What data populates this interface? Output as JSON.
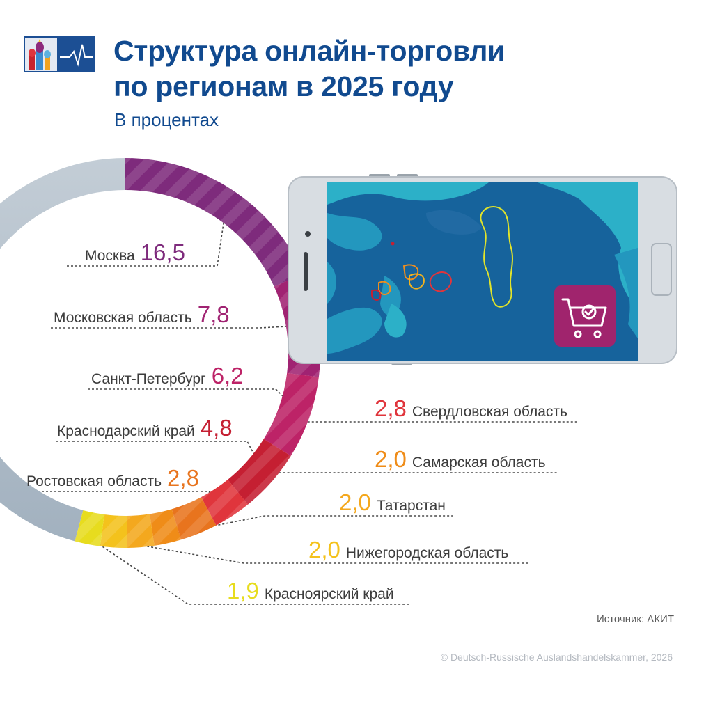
{
  "title_line1": "Структура онлайн-торговли",
  "title_line2": "по регионам в 2025 году",
  "subtitle": "В процентах",
  "source": "Источник: АКИТ",
  "copyright": "© Deutsch-Russische Auslandshandelskammer, 2026",
  "icons": {
    "logo": "chamber-logo-icon",
    "phone": "smartphone-icon",
    "map": "russia-map",
    "cart": "shopping-cart-check-icon"
  },
  "colors": {
    "title": "#114a8f",
    "rest": "#a9b6c2"
  },
  "chart_data": {
    "type": "pie",
    "unit": "%",
    "slices": [
      {
        "name": "Москва",
        "value": 16.5,
        "label": "16,5",
        "color": "#7e2b7c"
      },
      {
        "name": "Московская область",
        "value": 7.8,
        "label": "7,8",
        "color": "#a02372"
      },
      {
        "name": "Санкт-Петербург",
        "value": 6.2,
        "label": "6,2",
        "color": "#bd2367"
      },
      {
        "name": "Краснодарский край",
        "value": 4.8,
        "label": "4,8",
        "color": "#c51f32"
      },
      {
        "name": "Свердловская область",
        "value": 2.8,
        "label": "2,8",
        "color": "#e0353c"
      },
      {
        "name": "Ростовская область",
        "value": 2.8,
        "label": "2,8",
        "color": "#e8741e"
      },
      {
        "name": "Самарская область",
        "value": 2.0,
        "label": "2,0",
        "color": "#ef8c18"
      },
      {
        "name": "Татарстан",
        "value": 2.0,
        "label": "2,0",
        "color": "#f4a81e"
      },
      {
        "name": "Нижегородская область",
        "value": 2.0,
        "label": "2,0",
        "color": "#f4c21c"
      },
      {
        "name": "Красноярский край",
        "value": 1.9,
        "label": "1,9",
        "color": "#e7dc1e"
      }
    ]
  }
}
